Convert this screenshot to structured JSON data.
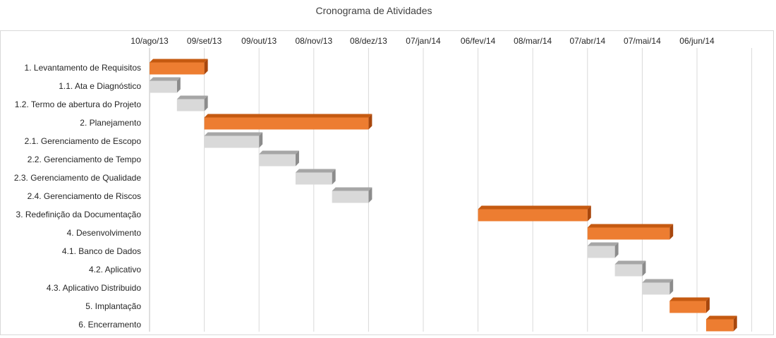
{
  "chart_data": {
    "type": "bar",
    "subtype": "gantt",
    "title": "Cronograma de Atividades",
    "x_ticks": [
      "10/ago/13",
      "09/set/13",
      "09/out/13",
      "08/nov/13",
      "08/dez/13",
      "07/jan/14",
      "06/fev/14",
      "08/mar/14",
      "07/abr/14",
      "07/mai/14",
      "06/jun/14"
    ],
    "x_start": "2013-08-10",
    "x_step_days": 30,
    "grid": true,
    "colors": {
      "phase": "#ED7D31",
      "subtask": "#D9D9D9"
    },
    "tasks": [
      {
        "label": "1. Levantamento de Requisitos",
        "start": "2013-08-10",
        "end": "2013-09-09",
        "kind": "phase"
      },
      {
        "label": "1.1. Ata e Diagnóstico",
        "start": "2013-08-10",
        "end": "2013-08-25",
        "kind": "subtask"
      },
      {
        "label": "1.2. Termo de abertura do Projeto",
        "start": "2013-08-25",
        "end": "2013-09-09",
        "kind": "subtask"
      },
      {
        "label": "2. Planejamento",
        "start": "2013-09-09",
        "end": "2013-12-08",
        "kind": "phase"
      },
      {
        "label": "2.1. Gerenciamento de Escopo",
        "start": "2013-09-09",
        "end": "2013-10-09",
        "kind": "subtask"
      },
      {
        "label": "2.2. Gerenciamento de Tempo",
        "start": "2013-10-09",
        "end": "2013-10-29",
        "kind": "subtask"
      },
      {
        "label": "2.3. Gerenciamento de Qualidade",
        "start": "2013-10-29",
        "end": "2013-11-18",
        "kind": "subtask"
      },
      {
        "label": "2.4. Gerenciamento de Riscos",
        "start": "2013-11-18",
        "end": "2013-12-08",
        "kind": "subtask"
      },
      {
        "label": "3. Redefinição da Documentação",
        "start": "2014-02-06",
        "end": "2014-04-07",
        "kind": "phase"
      },
      {
        "label": "4. Desenvolvimento",
        "start": "2014-04-07",
        "end": "2014-05-22",
        "kind": "phase"
      },
      {
        "label": "4.1. Banco de Dados",
        "start": "2014-04-07",
        "end": "2014-04-22",
        "kind": "subtask"
      },
      {
        "label": "4.2. Aplicativo",
        "start": "2014-04-22",
        "end": "2014-05-07",
        "kind": "subtask"
      },
      {
        "label": "4.3. Aplicativo Distribuido",
        "start": "2014-05-07",
        "end": "2014-05-22",
        "kind": "subtask"
      },
      {
        "label": "5. Implantação",
        "start": "2014-05-22",
        "end": "2014-06-11",
        "kind": "phase"
      },
      {
        "label": "6. Encerramento",
        "start": "2014-06-11",
        "end": "2014-06-26",
        "kind": "phase"
      }
    ]
  }
}
